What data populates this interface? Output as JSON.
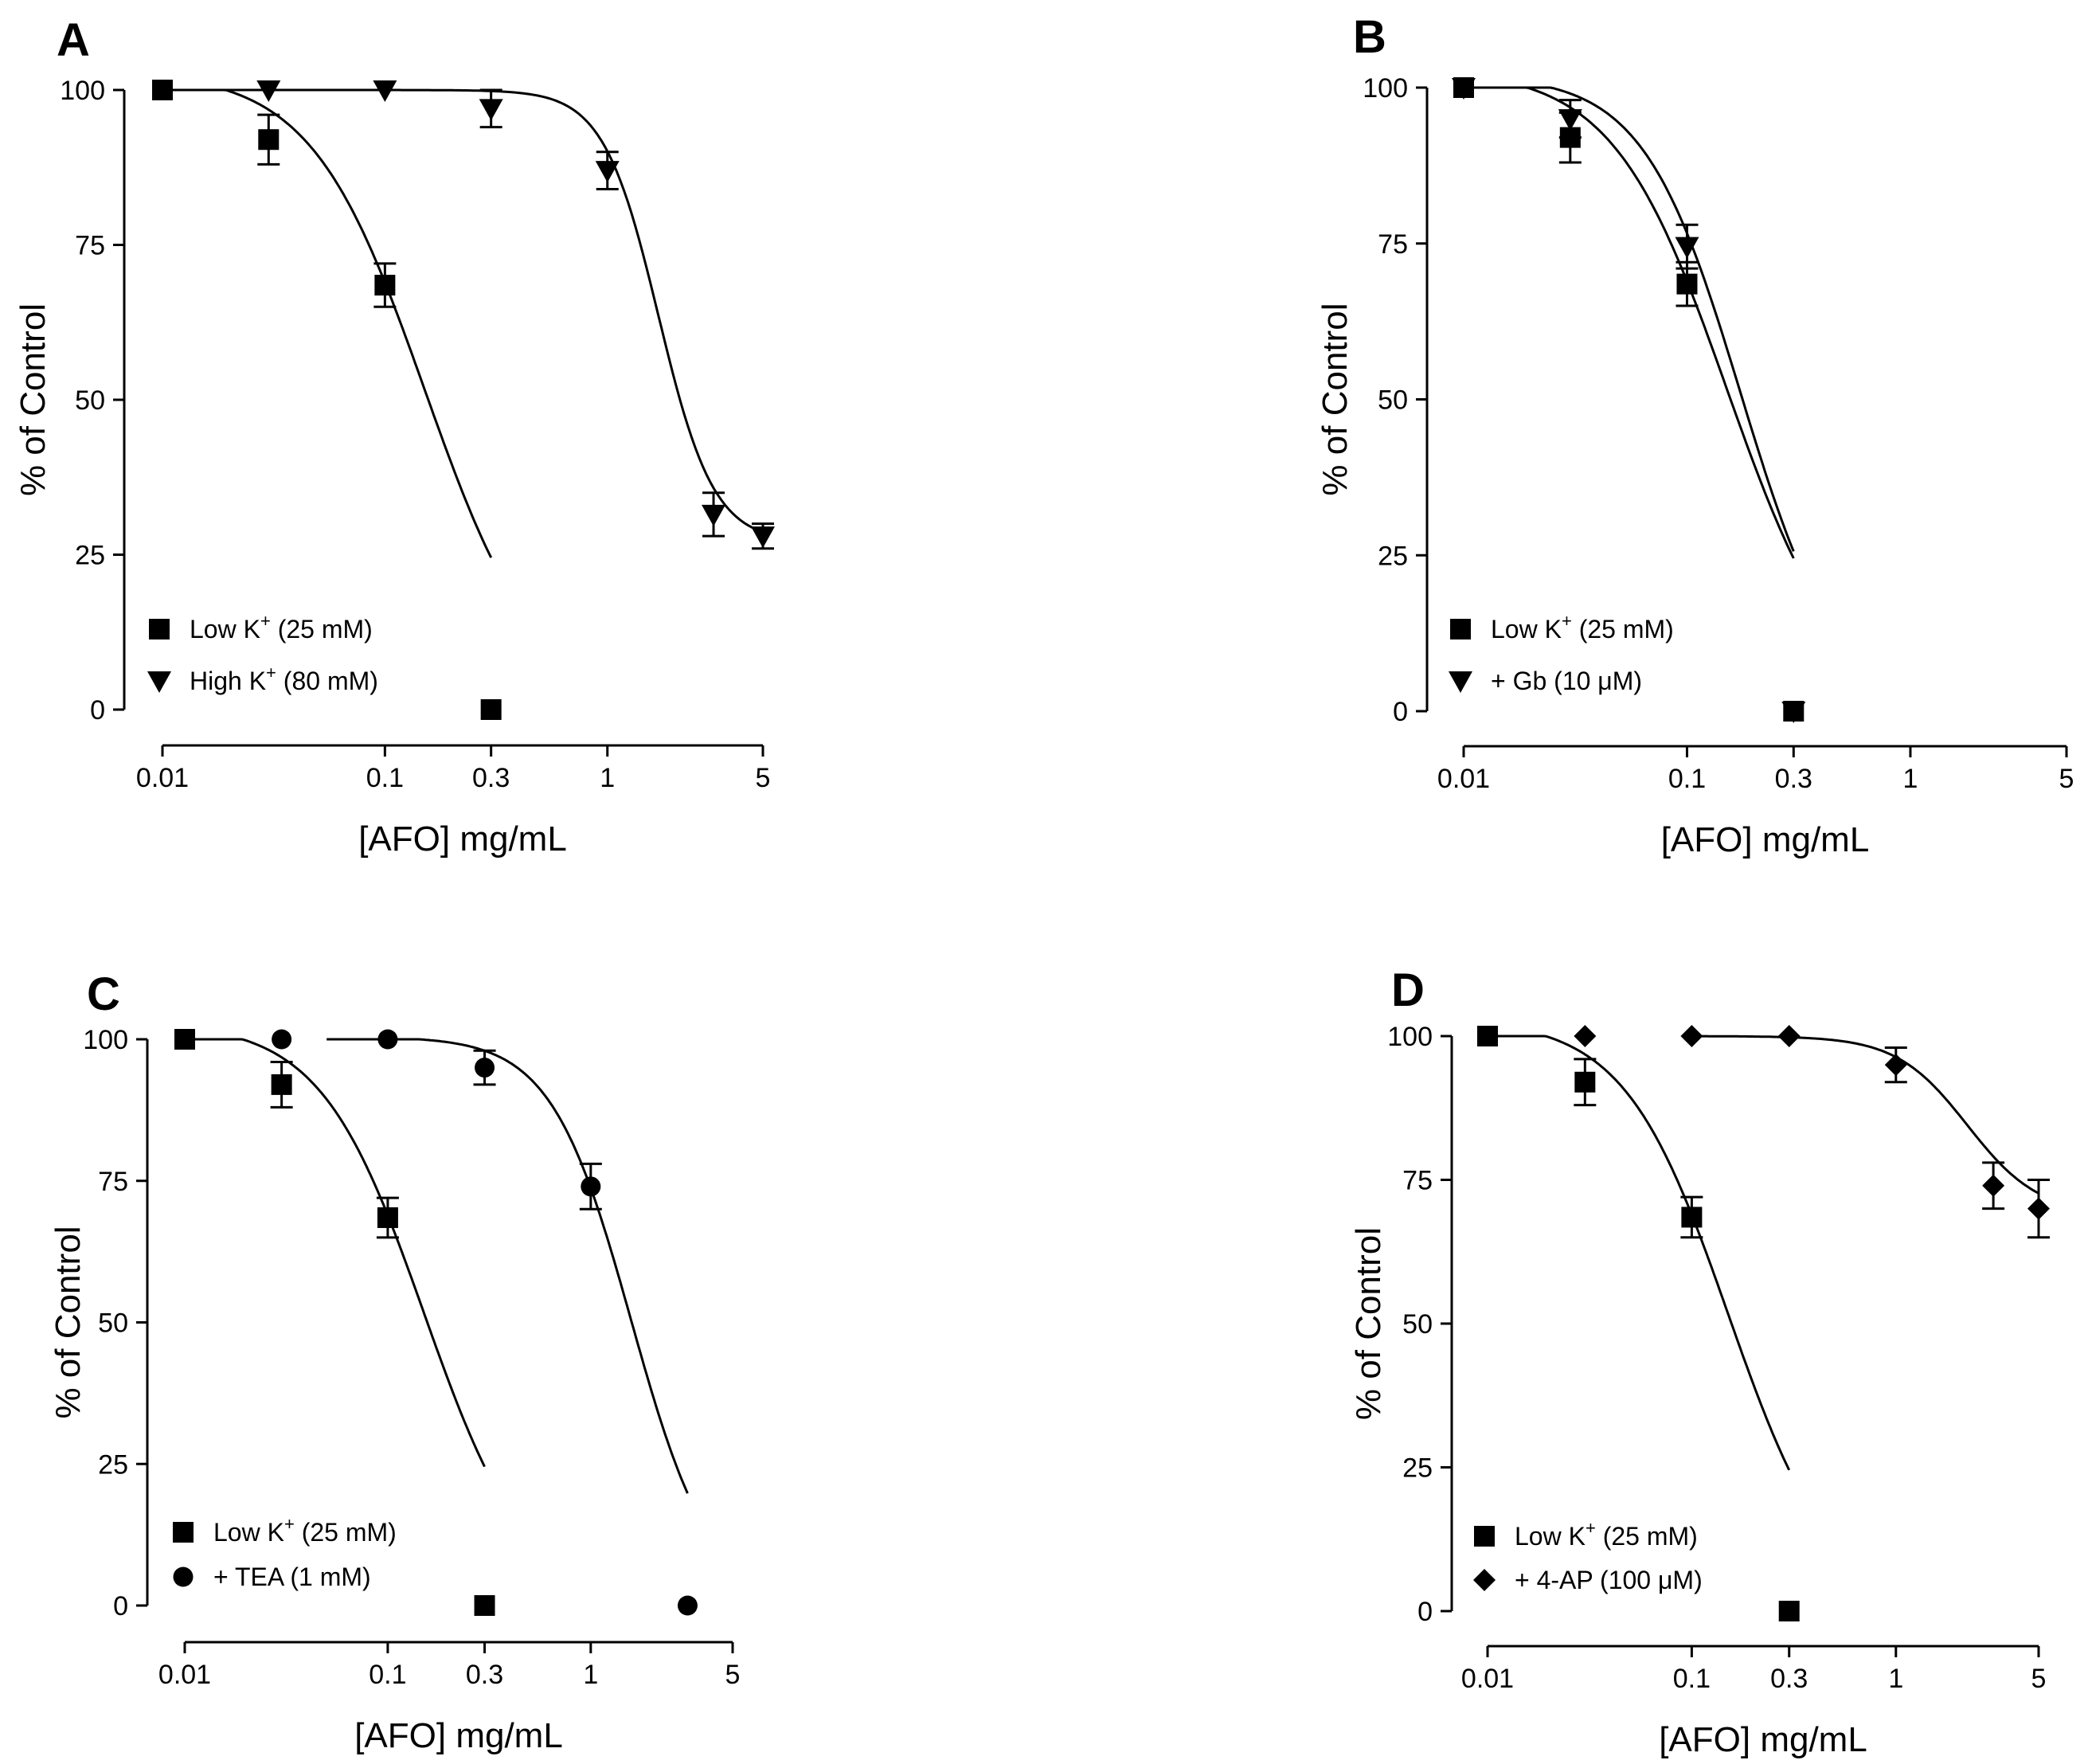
{
  "figure": {
    "x_label": "[AFO] mg/mL",
    "y_label": "% of Control",
    "x_ticks": [
      0.01,
      0.1,
      0.3,
      1,
      5
    ],
    "x_tick_labels": [
      "0.01",
      "0.1",
      "0.3",
      "1",
      "5"
    ],
    "y_ticks": [
      0,
      25,
      50,
      75,
      100
    ],
    "y_tick_labels": [
      "0",
      "25",
      "50",
      "75",
      "100"
    ]
  },
  "chart_data": [
    {
      "panel": "A",
      "type": "scatter",
      "title": "",
      "xlabel": "[AFO] mg/mL",
      "ylabel": "% of Control",
      "xscale": "log",
      "xlim": [
        0.01,
        5
      ],
      "ylim": [
        0,
        100
      ],
      "series": [
        {
          "name": "Low K+ (25 mM)",
          "legend_main": "Low K",
          "legend_sup": "+",
          "legend_tail": " (25 mM)",
          "marker": "square",
          "x": [
            0.01,
            0.03,
            0.1,
            0.3
          ],
          "y": [
            100,
            92,
            68.5,
            0
          ],
          "err": [
            0,
            4,
            3.5,
            0
          ],
          "fit": {
            "bottom": 0,
            "top": 103,
            "logIC50": -0.82,
            "hill": 1.7,
            "xmin": 0.01,
            "xmax": 0.3
          }
        },
        {
          "name": "High K+ (80 mM)",
          "legend_main": "High K",
          "legend_sup": "+",
          "legend_tail": " (80 mM)",
          "marker": "triangle-down",
          "x": [
            0.03,
            0.1,
            0.3,
            1,
            3,
            5
          ],
          "y": [
            100,
            100,
            97,
            87,
            31.5,
            28
          ],
          "err": [
            0,
            0,
            3,
            3,
            3.5,
            2
          ],
          "fit": {
            "bottom": 27,
            "top": 100,
            "logIC50": 0.23,
            "hill": 3.5,
            "xmin": 0.01,
            "xmax": 5
          }
        }
      ]
    },
    {
      "panel": "B",
      "type": "scatter",
      "title": "",
      "xlabel": "[AFO] mg/mL",
      "ylabel": "% of Control",
      "xscale": "log",
      "xlim": [
        0.01,
        5
      ],
      "ylim": [
        0,
        100
      ],
      "series": [
        {
          "name": "Low K+ (25 mM)",
          "legend_main": "Low K",
          "legend_sup": "+",
          "legend_tail": " (25 mM)",
          "marker": "square",
          "x": [
            0.01,
            0.03,
            0.1,
            0.3
          ],
          "y": [
            100,
            92,
            68.5,
            0
          ],
          "err": [
            0,
            4,
            3.5,
            0
          ],
          "fit": {
            "bottom": 0,
            "top": 103,
            "logIC50": -0.82,
            "hill": 1.7,
            "xmin": 0.01,
            "xmax": 0.3
          }
        },
        {
          "name": "+ Gb (10 μM)",
          "legend_main": "+ Gb (10 μM)",
          "legend_sup": "",
          "legend_tail": "",
          "marker": "triangle-down",
          "x": [
            0.01,
            0.03,
            0.1,
            0.3
          ],
          "y": [
            100,
            95,
            74.5,
            0
          ],
          "err": [
            0,
            3,
            3.5,
            0
          ],
          "fit": {
            "bottom": 0,
            "top": 102,
            "logIC50": -0.76,
            "hill": 2.0,
            "xmin": 0.01,
            "xmax": 0.3
          }
        }
      ]
    },
    {
      "panel": "C",
      "type": "scatter",
      "title": "",
      "xlabel": "[AFO] mg/mL",
      "ylabel": "% of Control",
      "xscale": "log",
      "xlim": [
        0.01,
        5
      ],
      "ylim": [
        0,
        100
      ],
      "series": [
        {
          "name": "Low K+ (25 mM)",
          "legend_main": "Low K",
          "legend_sup": "+",
          "legend_tail": " (25 mM)",
          "marker": "square",
          "x": [
            0.01,
            0.03,
            0.1,
            0.3
          ],
          "y": [
            100,
            92,
            68.5,
            0
          ],
          "err": [
            0,
            4,
            3.5,
            0
          ],
          "fit": {
            "bottom": 0,
            "top": 103,
            "logIC50": -0.82,
            "hill": 1.7,
            "xmin": 0.01,
            "xmax": 0.3
          }
        },
        {
          "name": "+ TEA (1 mM)",
          "legend_main": "+ TEA (1 mM)",
          "legend_sup": "",
          "legend_tail": "",
          "marker": "circle",
          "x": [
            0.03,
            0.1,
            0.3,
            1,
            3
          ],
          "y": [
            100,
            100,
            95,
            74,
            0
          ],
          "err": [
            0,
            0,
            3,
            4,
            0
          ],
          "fit": {
            "bottom": 0,
            "top": 100.5,
            "logIC50": 0.2,
            "hill": 2.2,
            "xmin": 0.05,
            "xmax": 3
          }
        }
      ]
    },
    {
      "panel": "D",
      "type": "scatter",
      "title": "",
      "xlabel": "[AFO] mg/mL",
      "ylabel": "% of Control",
      "xscale": "log",
      "xlim": [
        0.01,
        5
      ],
      "ylim": [
        0,
        100
      ],
      "series": [
        {
          "name": "Low K+ (25 mM)",
          "legend_main": "Low K",
          "legend_sup": "+",
          "legend_tail": " (25 mM)",
          "marker": "square",
          "x": [
            0.01,
            0.03,
            0.1,
            0.3
          ],
          "y": [
            100,
            92,
            68.5,
            0
          ],
          "err": [
            0,
            4,
            3.5,
            0
          ],
          "fit": {
            "bottom": 0,
            "top": 103,
            "logIC50": -0.82,
            "hill": 1.7,
            "xmin": 0.01,
            "xmax": 0.3
          }
        },
        {
          "name": "+ 4-AP (100 μM)",
          "legend_main": "+ 4-AP (100 μM)",
          "legend_sup": "",
          "legend_tail": "",
          "marker": "diamond",
          "x": [
            0.03,
            0.1,
            0.3,
            1,
            3,
            5
          ],
          "y": [
            100,
            100,
            100,
            95,
            74,
            70
          ],
          "err": [
            0,
            0,
            0,
            3,
            4,
            5
          ],
          "fit": {
            "bottom": 69,
            "top": 100,
            "logIC50": 0.35,
            "hill": 2.5,
            "xmin": 0.1,
            "xmax": 5
          }
        }
      ]
    }
  ]
}
